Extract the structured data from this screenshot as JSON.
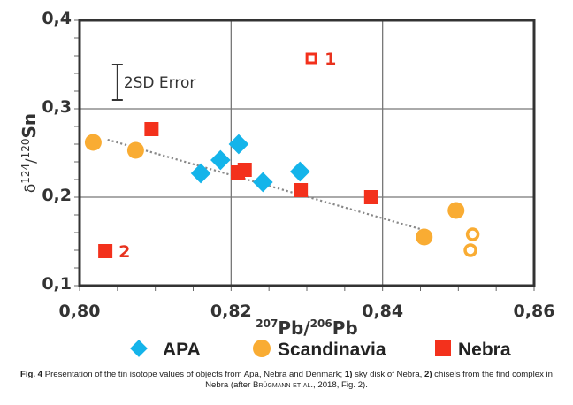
{
  "chart_data": {
    "type": "scatter",
    "title": "",
    "xlabel": {
      "sup1": "207",
      "base1": "Pb/",
      "sup2": "206",
      "base2": "Pb"
    },
    "ylabel": {
      "prefix": "δ",
      "sup1": "124",
      "mid": "/",
      "sup2": "120",
      "base": "Sn"
    },
    "xlim": [
      0.8,
      0.86
    ],
    "ylim": [
      0.1,
      0.4
    ],
    "x_ticks": [
      0.8,
      0.82,
      0.84,
      0.86
    ],
    "x_tick_labels": [
      "0,80",
      "0,82",
      "0,84",
      "0,86"
    ],
    "x_minor_step": 0.005,
    "y_ticks": [
      0.1,
      0.2,
      0.3,
      0.4
    ],
    "y_tick_labels": [
      "0,1",
      "0,2",
      "0,3",
      "0,4"
    ],
    "y_minor_step": 0.02,
    "grid": true,
    "legend_position": "bottom",
    "colors": {
      "APA": "#14b4ea",
      "Scandinavia": "#f9ac33",
      "Nebra": "#f3311c",
      "grid": "#777777",
      "frame": "#333333",
      "trend": "#888888"
    },
    "series": [
      {
        "name": "APA",
        "marker": "diamond",
        "points": [
          {
            "x": 0.816,
            "y": 0.227
          },
          {
            "x": 0.8186,
            "y": 0.242
          },
          {
            "x": 0.821,
            "y": 0.26
          },
          {
            "x": 0.8242,
            "y": 0.217
          },
          {
            "x": 0.8291,
            "y": 0.229
          }
        ]
      },
      {
        "name": "Scandinavia",
        "marker": "circle",
        "points": [
          {
            "x": 0.8018,
            "y": 0.262
          },
          {
            "x": 0.8074,
            "y": 0.253
          },
          {
            "x": 0.8455,
            "y": 0.155
          },
          {
            "x": 0.8497,
            "y": 0.185
          },
          {
            "x": 0.8519,
            "y": 0.158,
            "open": true
          },
          {
            "x": 0.8516,
            "y": 0.14,
            "open": true
          }
        ]
      },
      {
        "name": "Nebra",
        "marker": "square",
        "points": [
          {
            "x": 0.8095,
            "y": 0.277
          },
          {
            "x": 0.8209,
            "y": 0.228
          },
          {
            "x": 0.8218,
            "y": 0.231
          },
          {
            "x": 0.8292,
            "y": 0.208
          },
          {
            "x": 0.8385,
            "y": 0.2
          },
          {
            "x": 0.8034,
            "y": 0.139,
            "label": "2"
          },
          {
            "x": 0.8306,
            "y": 0.357,
            "open": true,
            "label": "1"
          }
        ]
      }
    ],
    "trendline": {
      "style": "dotted",
      "from": {
        "x": 0.8037,
        "y": 0.265
      },
      "to": {
        "x": 0.8462,
        "y": 0.161
      }
    },
    "error_bar": {
      "label": "2SD Error",
      "x": 0.805,
      "y_low": 0.31,
      "y_high": 0.35
    }
  },
  "caption": {
    "fig_label": "Fig. 4",
    "text_1": " Presentation of the tin isotope values of objects from Apa, Nebra and Denmark; ",
    "bold_1": "1)",
    "text_2": " sky disk of Nebra, ",
    "bold_2": "2)",
    "text_3": " chisels from the find complex in Nebra (after ",
    "author": "Brügmann et al.",
    "text_4": ", 2018, Fig. 2)."
  }
}
